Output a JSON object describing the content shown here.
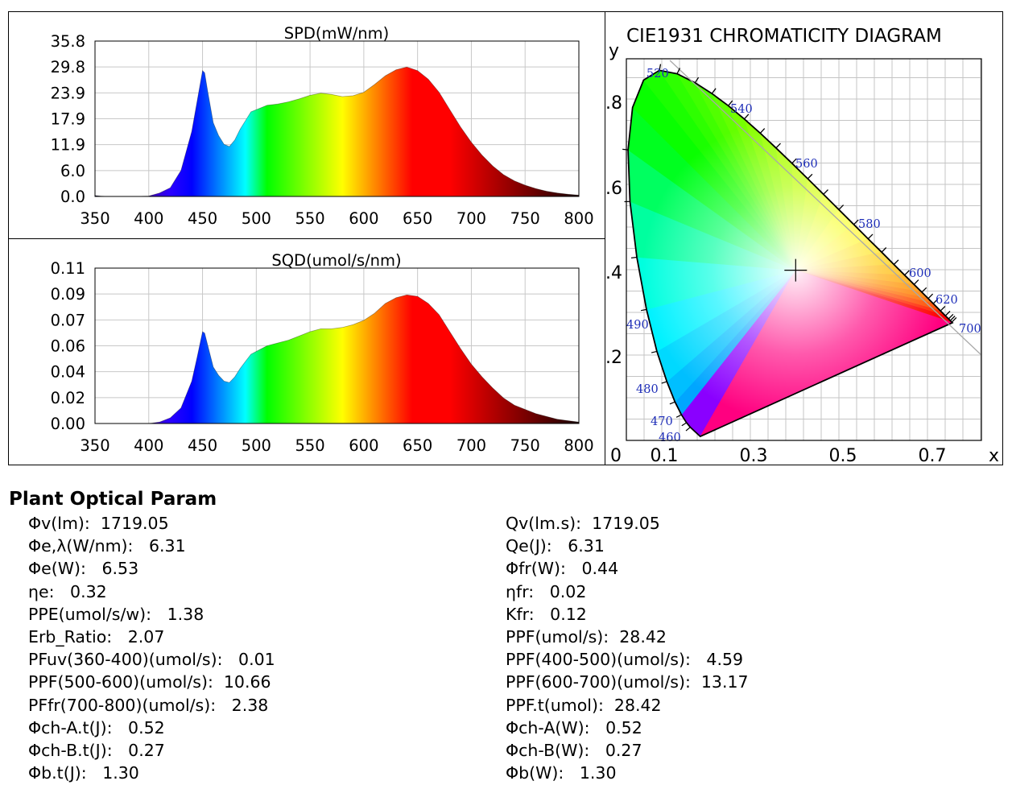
{
  "colors": {
    "axis": "#000000",
    "grid": "#c8c8c8",
    "background": "#ffffff"
  },
  "chart_data": [
    {
      "type": "area",
      "title": "SPD(mW/nm)",
      "xlabel": "",
      "ylabel": "",
      "xlim": [
        350,
        800
      ],
      "ylim": [
        0.0,
        35.8
      ],
      "x_ticks": [
        "350",
        "400",
        "450",
        "500",
        "550",
        "600",
        "650",
        "700",
        "750",
        "800"
      ],
      "y_ticks": [
        "0.0",
        "6.0",
        "11.9",
        "17.9",
        "23.9",
        "29.8",
        "35.8"
      ],
      "grid": true,
      "fill": "wavelength spectrum colors",
      "x": [
        350,
        360,
        370,
        380,
        390,
        400,
        410,
        420,
        430,
        440,
        445,
        450,
        452,
        455,
        460,
        465,
        470,
        475,
        480,
        485,
        490,
        495,
        500,
        510,
        520,
        530,
        540,
        550,
        560,
        570,
        580,
        590,
        600,
        610,
        620,
        630,
        640,
        650,
        660,
        670,
        680,
        690,
        700,
        710,
        720,
        730,
        740,
        750,
        760,
        770,
        780,
        790,
        800
      ],
      "values": [
        0.2,
        0,
        0,
        0,
        0,
        0.1,
        0.8,
        2.0,
        6.0,
        15.0,
        22.0,
        29.0,
        28.5,
        24.0,
        17.0,
        14.0,
        12.0,
        11.5,
        13.0,
        15.5,
        17.5,
        19.5,
        20.0,
        21.0,
        21.3,
        21.8,
        22.5,
        23.3,
        23.8,
        23.5,
        23.0,
        23.2,
        24.0,
        25.8,
        27.8,
        29.2,
        29.8,
        29.0,
        27.0,
        24.0,
        20.0,
        16.0,
        12.5,
        9.5,
        7.0,
        5.0,
        3.6,
        2.6,
        1.8,
        1.2,
        0.8,
        0.5,
        0.3
      ]
    },
    {
      "type": "area",
      "title": "SQD(umol/s/nm)",
      "xlabel": "",
      "ylabel": "",
      "xlim": [
        350,
        800
      ],
      "ylim": [
        0.0,
        0.11
      ],
      "x_ticks": [
        "350",
        "400",
        "450",
        "500",
        "550",
        "600",
        "650",
        "700",
        "750",
        "800"
      ],
      "y_ticks": [
        "0.00",
        "0.02",
        "0.04",
        "0.06",
        "0.07",
        "0.09",
        "0.11"
      ],
      "grid": true,
      "fill": "wavelength spectrum colors",
      "x": [
        350,
        360,
        370,
        380,
        390,
        400,
        410,
        420,
        430,
        440,
        445,
        450,
        452,
        455,
        460,
        465,
        470,
        475,
        480,
        485,
        490,
        495,
        500,
        510,
        520,
        530,
        540,
        550,
        560,
        570,
        580,
        590,
        600,
        610,
        620,
        630,
        640,
        650,
        660,
        670,
        680,
        690,
        700,
        710,
        720,
        730,
        740,
        750,
        760,
        770,
        780,
        790,
        800
      ],
      "values": [
        0,
        0,
        0,
        0,
        0,
        0,
        0.001,
        0.004,
        0.011,
        0.03,
        0.047,
        0.065,
        0.064,
        0.055,
        0.04,
        0.034,
        0.03,
        0.029,
        0.033,
        0.039,
        0.044,
        0.049,
        0.051,
        0.055,
        0.057,
        0.059,
        0.062,
        0.065,
        0.067,
        0.067,
        0.068,
        0.07,
        0.073,
        0.078,
        0.085,
        0.089,
        0.091,
        0.09,
        0.085,
        0.077,
        0.065,
        0.053,
        0.042,
        0.033,
        0.025,
        0.018,
        0.013,
        0.01,
        0.007,
        0.005,
        0.003,
        0.002,
        0.001
      ]
    },
    {
      "type": "scatter",
      "title": "CIE1931 CHROMATICITY DIAGRAM",
      "xlabel": "x",
      "ylabel": "y",
      "xlim": [
        0.0,
        0.8
      ],
      "ylim": [
        0.0,
        0.9
      ],
      "x_ticks": [
        "0",
        "0.1",
        "0.3",
        "0.5",
        "0.7"
      ],
      "y_ticks": [
        ".2",
        ".4",
        ".6",
        ".8"
      ],
      "grid": true,
      "locus_labels": [
        "460",
        "470",
        "480",
        "490",
        "520",
        "540",
        "560",
        "580",
        "600",
        "620",
        "700"
      ],
      "white_point": {
        "x": 0.3815,
        "y": 0.3835
      }
    }
  ],
  "plant_params": {
    "title": "Plant Optical Param",
    "left": [
      "Φv(lm):  1719.05",
      "Φe,λ(W/nm):   6.31",
      "Φe(W):   6.53",
      "ηe:   0.32",
      "PPE(umol/s/w):   1.38",
      "Erb_Ratio:   2.07",
      "PFuv(360-400)(umol/s):   0.01",
      "PPF(500-600)(umol/s):  10.66",
      "PFfr(700-800)(umol/s):   2.38",
      "Φch-A.t(J):   0.52",
      "Φch-B.t(J):   0.27",
      "Φb.t(J):   1.30"
    ],
    "right": [
      "Qv(lm.s):  1719.05",
      "Qe(J):   6.31",
      "Φfr(W):   0.44",
      "ηfr:   0.02",
      "Kfr:   0.12",
      "PPF(umol/s):  28.42",
      "PPF(400-500)(umol/s):   4.59",
      "PPF(600-700)(umol/s):  13.17",
      "PPF.t(umol):  28.42",
      "Φch-A(W):   0.52",
      "Φch-B(W):   0.27",
      "Φb(W):   1.30"
    ]
  }
}
